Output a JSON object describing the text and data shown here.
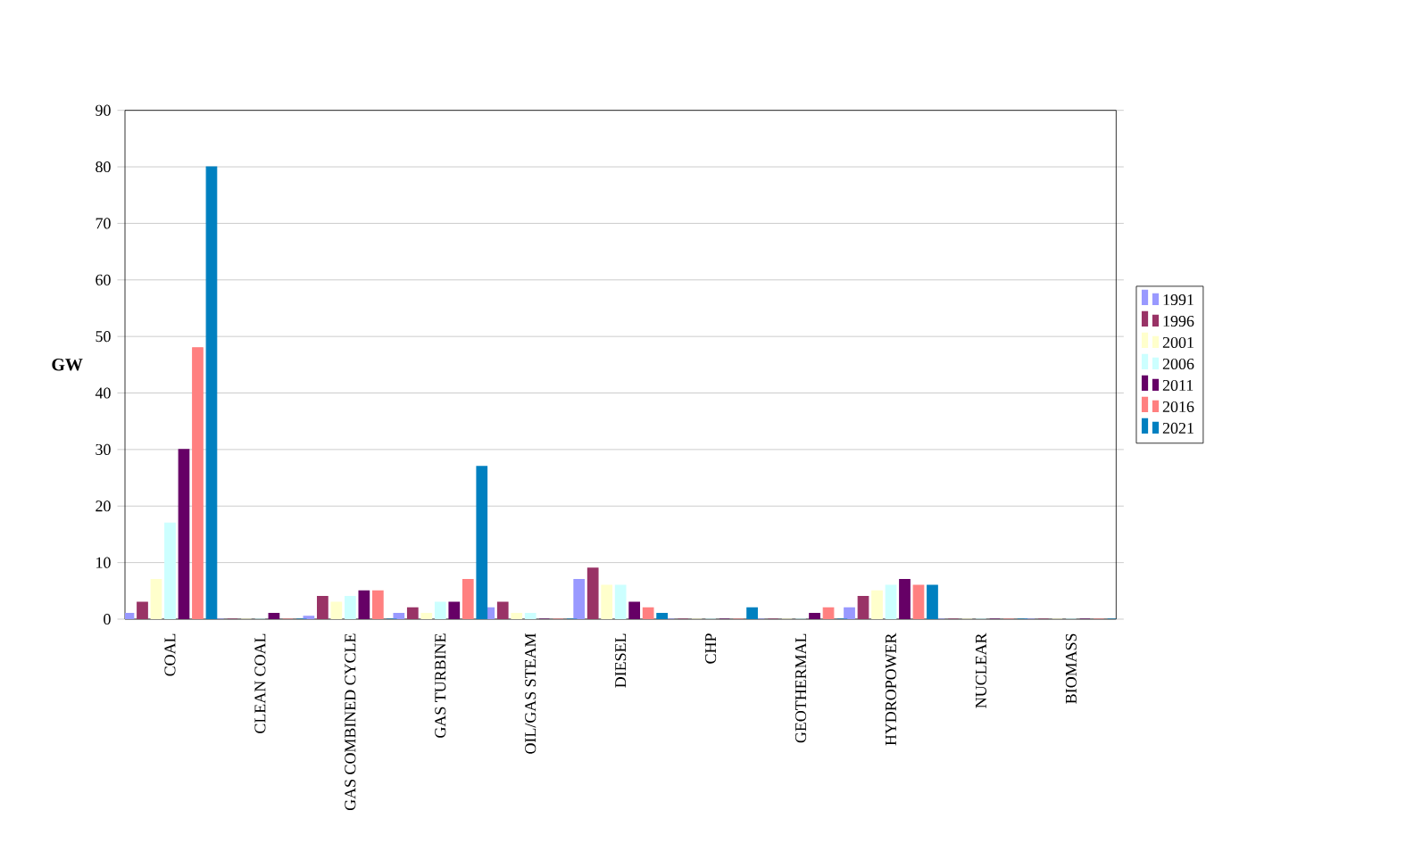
{
  "chart_data": {
    "type": "bar",
    "ylabel": "GW",
    "categories": [
      "COAL",
      "CLEAN COAL",
      "GAS COMBINED CYCLE",
      "GAS TURBINE",
      "OIL/GAS STEAM",
      "DIESEL",
      "CHP",
      "GEOTHERMAL",
      "HYDROPOWER",
      "NUCLEAR",
      "BIOMASS"
    ],
    "series": [
      {
        "name": "1991",
        "color": "#9999ff",
        "values": [
          1,
          0,
          0.5,
          1,
          2,
          7,
          0,
          0,
          2,
          0,
          0
        ]
      },
      {
        "name": "1996",
        "color": "#993366",
        "values": [
          3,
          0,
          4,
          2,
          3,
          9,
          0,
          0,
          4,
          0,
          0
        ]
      },
      {
        "name": "2001",
        "color": "#ffffcc",
        "values": [
          7,
          0,
          3,
          1,
          1,
          6,
          0,
          0,
          5,
          0,
          0
        ]
      },
      {
        "name": "2006",
        "color": "#ccffff",
        "values": [
          17,
          0,
          4,
          3,
          1,
          6,
          0,
          0,
          6,
          0,
          0
        ]
      },
      {
        "name": "2011",
        "color": "#660066",
        "values": [
          30,
          1,
          5,
          3,
          0,
          3,
          0,
          1,
          7,
          0,
          0
        ]
      },
      {
        "name": "2016",
        "color": "#ff8080",
        "values": [
          48,
          0,
          5,
          7,
          0,
          2,
          0,
          2,
          6,
          0,
          0
        ]
      },
      {
        "name": "2021",
        "color": "#0080c0",
        "values": [
          80,
          0,
          0,
          27,
          0,
          1,
          2,
          0,
          6,
          0,
          0
        ]
      }
    ],
    "ylim": [
      0,
      90
    ],
    "yticks": [
      0,
      10,
      20,
      30,
      40,
      50,
      60,
      70,
      80,
      90
    ],
    "grid": "y",
    "legend": "right"
  }
}
